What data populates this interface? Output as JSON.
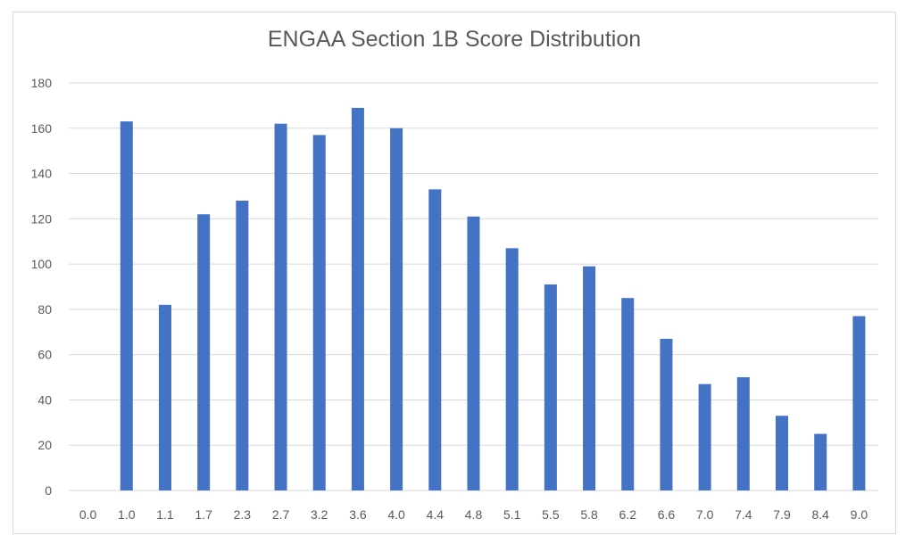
{
  "chart_data": {
    "type": "bar",
    "title": "ENGAA Section 1B Score Distribution",
    "xlabel": "",
    "ylabel": "",
    "ylim": [
      0,
      180
    ],
    "yticks": [
      "0",
      "20",
      "40",
      "60",
      "80",
      "100",
      "120",
      "140",
      "160",
      "180"
    ],
    "categories": [
      "0.0",
      "1.0",
      "1.1",
      "1.7",
      "2.3",
      "2.7",
      "3.2",
      "3.6",
      "4.0",
      "4.4",
      "4.8",
      "5.1",
      "5.5",
      "5.8",
      "6.2",
      "6.6",
      "7.0",
      "7.4",
      "7.9",
      "8.4",
      "9.0"
    ],
    "values": [
      0,
      163,
      82,
      122,
      128,
      162,
      157,
      169,
      160,
      133,
      121,
      107,
      91,
      99,
      85,
      67,
      47,
      50,
      33,
      25,
      77
    ],
    "bar_color": "#4472c4",
    "grid": true,
    "legend": "none"
  }
}
